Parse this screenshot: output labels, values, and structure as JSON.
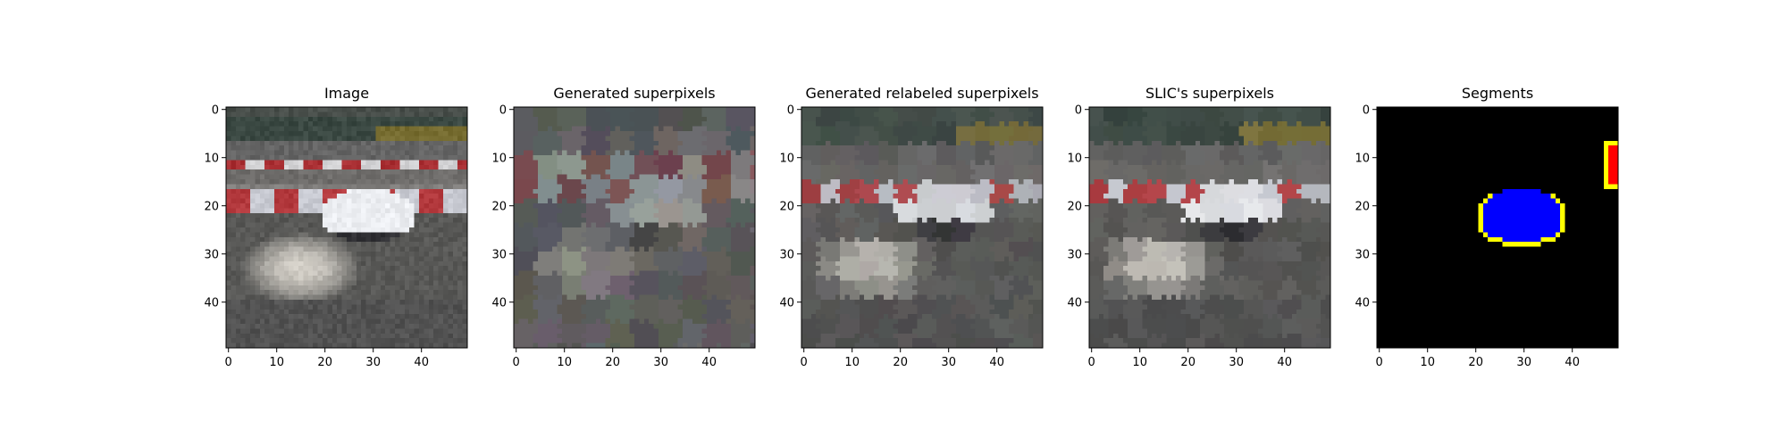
{
  "figure": {
    "background": "#ffffff"
  },
  "chart_data": [
    {
      "type": "heatmap",
      "title": "Image",
      "xlim": [
        0,
        49
      ],
      "ylim": [
        49,
        0
      ],
      "x_ticks": [
        0,
        10,
        20,
        30,
        40
      ],
      "y_ticks": [
        0,
        10,
        20,
        30,
        40
      ],
      "grid": false
    },
    {
      "type": "heatmap",
      "title": "Generated superpixels",
      "xlim": [
        0,
        49
      ],
      "ylim": [
        49,
        0
      ],
      "x_ticks": [
        0,
        10,
        20,
        30,
        40
      ],
      "y_ticks": [
        0,
        10,
        20,
        30,
        40
      ],
      "grid": false
    },
    {
      "type": "heatmap",
      "title": "Generated relabeled superpixels",
      "xlim": [
        0,
        49
      ],
      "ylim": [
        49,
        0
      ],
      "x_ticks": [
        0,
        10,
        20,
        30,
        40
      ],
      "y_ticks": [
        0,
        10,
        20,
        30,
        40
      ],
      "grid": false
    },
    {
      "type": "heatmap",
      "title": "SLIC's superpixels",
      "xlim": [
        0,
        49
      ],
      "ylim": [
        49,
        0
      ],
      "x_ticks": [
        0,
        10,
        20,
        30,
        40
      ],
      "y_ticks": [
        0,
        10,
        20,
        30,
        40
      ],
      "grid": false
    },
    {
      "type": "heatmap",
      "title": "Segments",
      "xlim": [
        0,
        49
      ],
      "ylim": [
        49,
        0
      ],
      "x_ticks": [
        0,
        10,
        20,
        30,
        40
      ],
      "y_ticks": [
        0,
        10,
        20,
        30,
        40
      ],
      "grid": false,
      "colors": {
        "background": "#000000",
        "segment_1": "#0000ff",
        "segment_2": "#ff0000",
        "boundary": "#ffff00"
      }
    }
  ]
}
